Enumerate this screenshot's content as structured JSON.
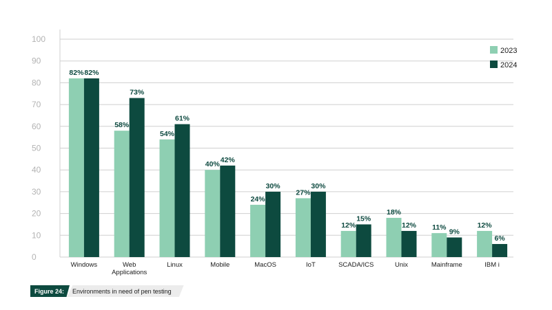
{
  "chart_data": {
    "type": "bar",
    "categories": [
      "Windows",
      "Web\nApplications",
      "Linux",
      "Mobile",
      "MacOS",
      "IoT",
      "SCADA/ICS",
      "Unix",
      "Mainframe",
      "IBM i"
    ],
    "series": [
      {
        "name": "2023",
        "values": [
          82,
          58,
          54,
          40,
          24,
          27,
          12,
          18,
          11,
          12
        ],
        "labels": [
          "82%",
          "58%",
          "54%",
          "40%",
          "24%",
          "27%",
          "12%",
          "18%",
          "11%",
          "12%"
        ],
        "color": "#8ecfb2"
      },
      {
        "name": "2024",
        "values": [
          82,
          73,
          61,
          42,
          30,
          30,
          15,
          12,
          9,
          6
        ],
        "labels": [
          "82%",
          "73%",
          "61%",
          "42%",
          "30%",
          "30%",
          "15%",
          "12%",
          "9%",
          "6%"
        ],
        "color": "#0d4a3f"
      }
    ],
    "ylim": [
      0,
      100
    ],
    "yticks": [
      0,
      10,
      20,
      30,
      40,
      50,
      60,
      70,
      80,
      90,
      100
    ],
    "ytick_labels": [
      "0",
      "10",
      "20",
      "30",
      "40",
      "50",
      "60",
      "70",
      "80",
      "90",
      "100"
    ],
    "grid": true,
    "legend": "top-right"
  },
  "caption": {
    "figure_label": "Figure 24:",
    "text": "Environments in need of pen testing"
  }
}
